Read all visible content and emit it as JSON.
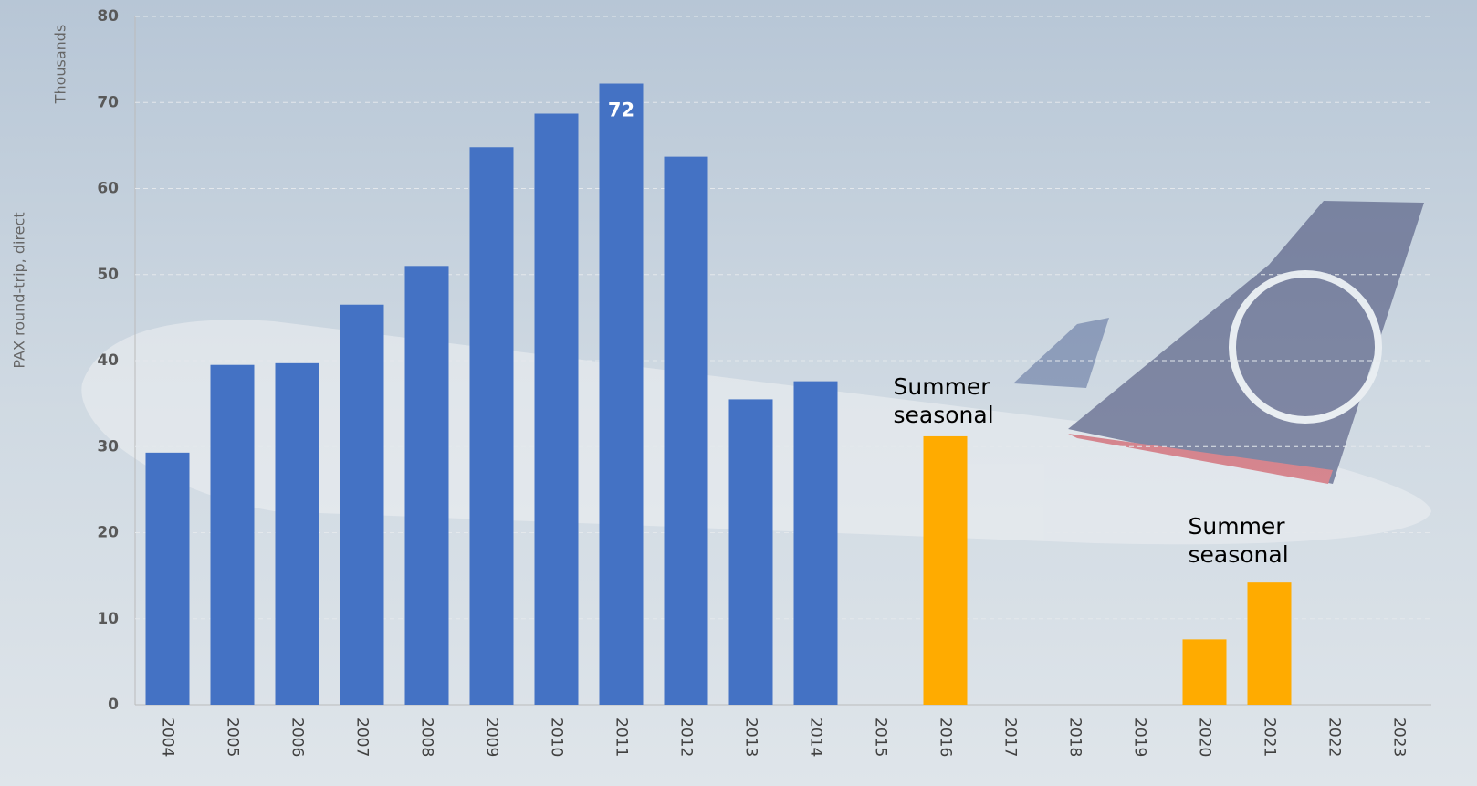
{
  "chart_data": {
    "type": "bar",
    "y_axis_label": "PAX round-trip, direct",
    "y_axis_units": "Thousands",
    "categories": [
      "2004",
      "2005",
      "2006",
      "2007",
      "2008",
      "2009",
      "2010",
      "2011",
      "2012",
      "2013",
      "2014",
      "2015",
      "2016",
      "2017",
      "2018",
      "2019",
      "2020",
      "2021",
      "2022",
      "2023"
    ],
    "values": [
      29.3,
      39.5,
      39.7,
      46.5,
      51.0,
      64.8,
      68.7,
      72.2,
      63.7,
      35.5,
      37.6,
      null,
      31.2,
      null,
      null,
      null,
      7.6,
      14.2,
      null,
      null
    ],
    "value_labels": [
      null,
      null,
      null,
      null,
      null,
      null,
      null,
      "72",
      null,
      null,
      null,
      null,
      null,
      null,
      null,
      null,
      null,
      null,
      null,
      null
    ],
    "colors": [
      "#4472c4",
      "#4472c4",
      "#4472c4",
      "#4472c4",
      "#4472c4",
      "#4472c4",
      "#4472c4",
      "#4472c4",
      "#4472c4",
      "#4472c4",
      "#4472c4",
      "#4472c4",
      "#ffab00",
      "#ffab00",
      "#ffab00",
      "#ffab00",
      "#ffab00",
      "#ffab00",
      "#ffab00",
      "#ffab00"
    ],
    "annotations": [
      "Summer seasonal",
      "Summer seasonal"
    ],
    "ylim": [
      0,
      80
    ],
    "yticks": [
      0,
      10,
      20,
      30,
      40,
      50,
      60,
      70,
      80
    ],
    "grid": true
  }
}
